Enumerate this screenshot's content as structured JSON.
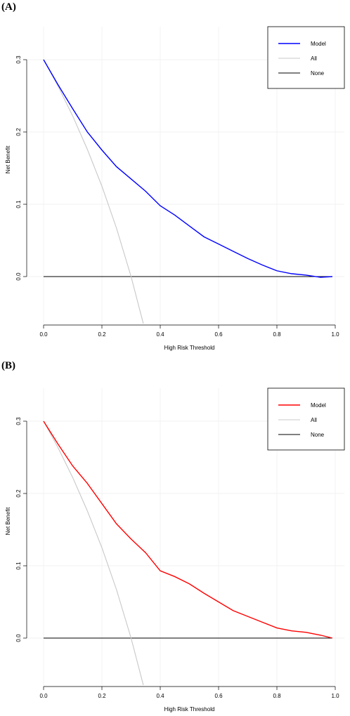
{
  "panels": {
    "a": {
      "label": "(A)"
    },
    "b": {
      "label": "(B)"
    }
  },
  "chart_data": [
    {
      "type": "line",
      "xlabel": "High Risk Threshold",
      "ylabel": "Net Benefit",
      "xlim": [
        0,
        1
      ],
      "ylim": [
        -0.065,
        0.35
      ],
      "xticks": [
        "0.0",
        "0.2",
        "0.4",
        "0.6",
        "0.8",
        "1.0"
      ],
      "yticks": [
        "0.0",
        "0.1",
        "0.2",
        "0.3"
      ],
      "grid": true,
      "legend_position": "top-right",
      "series": [
        {
          "name": "Model",
          "color": "#0000ff",
          "x": [
            0.0,
            0.05,
            0.1,
            0.15,
            0.2,
            0.25,
            0.3,
            0.35,
            0.4,
            0.45,
            0.5,
            0.55,
            0.6,
            0.65,
            0.7,
            0.75,
            0.8,
            0.85,
            0.9,
            0.95,
            0.99
          ],
          "y": [
            0.3,
            0.265,
            0.232,
            0.2,
            0.175,
            0.152,
            0.135,
            0.118,
            0.098,
            0.085,
            0.07,
            0.055,
            0.045,
            0.035,
            0.025,
            0.016,
            0.008,
            0.004,
            0.002,
            -0.001,
            0.0
          ]
        },
        {
          "name": "All",
          "color": "#c8c8c8",
          "x": [
            0.0,
            0.05,
            0.1,
            0.15,
            0.2,
            0.25,
            0.3,
            0.342
          ],
          "y": [
            0.3,
            0.263,
            0.222,
            0.176,
            0.125,
            0.067,
            0.0,
            -0.065
          ]
        },
        {
          "name": "None",
          "color": "#000000",
          "x": [
            0.0,
            0.99
          ],
          "y": [
            0.0,
            0.0
          ]
        }
      ]
    },
    {
      "type": "line",
      "xlabel": "High Risk Threshold",
      "ylabel": "Net Benefit",
      "xlim": [
        0,
        1
      ],
      "ylim": [
        -0.065,
        0.35
      ],
      "xticks": [
        "0.0",
        "0.2",
        "0.4",
        "0.6",
        "0.8",
        "1.0"
      ],
      "yticks": [
        "0.0",
        "0.1",
        "0.2",
        "0.3"
      ],
      "grid": true,
      "legend_position": "top-right",
      "series": [
        {
          "name": "Model",
          "color": "#ff0000",
          "x": [
            0.0,
            0.05,
            0.1,
            0.15,
            0.2,
            0.25,
            0.3,
            0.35,
            0.4,
            0.45,
            0.5,
            0.55,
            0.6,
            0.65,
            0.7,
            0.75,
            0.8,
            0.85,
            0.9,
            0.95,
            0.99
          ],
          "y": [
            0.3,
            0.268,
            0.238,
            0.214,
            0.186,
            0.158,
            0.137,
            0.118,
            0.093,
            0.085,
            0.075,
            0.062,
            0.05,
            0.038,
            0.03,
            0.022,
            0.014,
            0.01,
            0.008,
            0.004,
            0.0
          ]
        },
        {
          "name": "All",
          "color": "#c8c8c8",
          "x": [
            0.0,
            0.05,
            0.1,
            0.15,
            0.2,
            0.25,
            0.3,
            0.342
          ],
          "y": [
            0.3,
            0.263,
            0.222,
            0.176,
            0.125,
            0.067,
            0.0,
            -0.065
          ]
        },
        {
          "name": "None",
          "color": "#000000",
          "x": [
            0.0,
            0.99
          ],
          "y": [
            0.0,
            0.0
          ]
        }
      ]
    }
  ]
}
